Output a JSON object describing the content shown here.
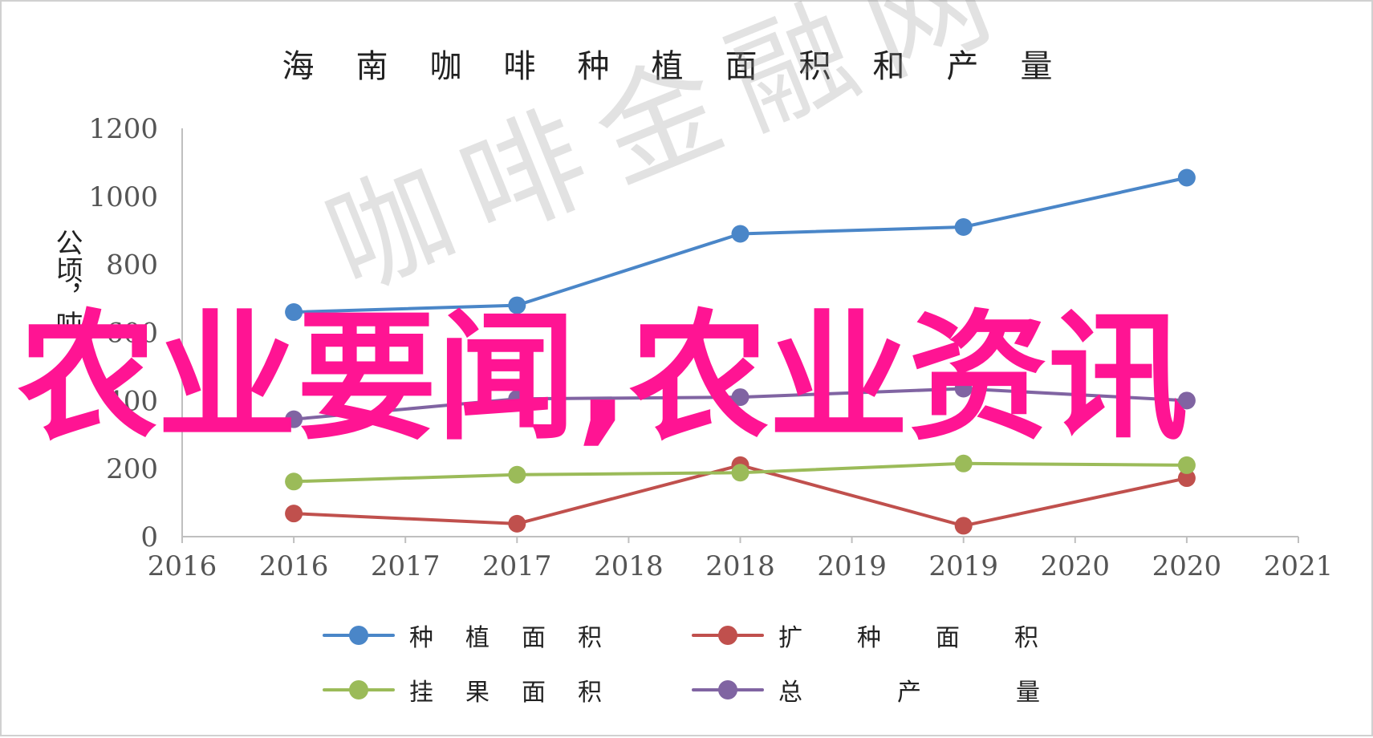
{
  "chart_data": {
    "type": "line",
    "title": "海南咖啡种植面积和产量",
    "ylabel": "公顷，吨",
    "xlabel": "",
    "x_tick_labels": [
      "2016",
      "2016",
      "2017",
      "2017",
      "2018",
      "2018",
      "2019",
      "2019",
      "2020",
      "2020",
      "2021"
    ],
    "y_ticks": [
      0,
      200,
      400,
      600,
      800,
      1000,
      1200
    ],
    "ylim": [
      0,
      1200
    ],
    "grid": false,
    "legend_position": "bottom",
    "categories": [
      "2016",
      "2017",
      "2018",
      "2019",
      "2020"
    ],
    "series": [
      {
        "name": "种植面积",
        "color": "#4a86c8",
        "values": [
          660,
          680,
          890,
          910,
          1055
        ]
      },
      {
        "name": "扩种面积",
        "color": "#c0504d",
        "values": [
          68,
          38,
          210,
          32,
          172
        ]
      },
      {
        "name": "挂果面积",
        "color": "#9bbb59",
        "values": [
          162,
          182,
          188,
          215,
          210
        ]
      },
      {
        "name": "总产量",
        "color": "#8064a2",
        "values": [
          345,
          405,
          410,
          435,
          400
        ]
      }
    ]
  },
  "watermark": {
    "main_text": "农业要闻,农业资讯",
    "main_color": "#ff1493",
    "site_text": "咖啡金融网"
  }
}
